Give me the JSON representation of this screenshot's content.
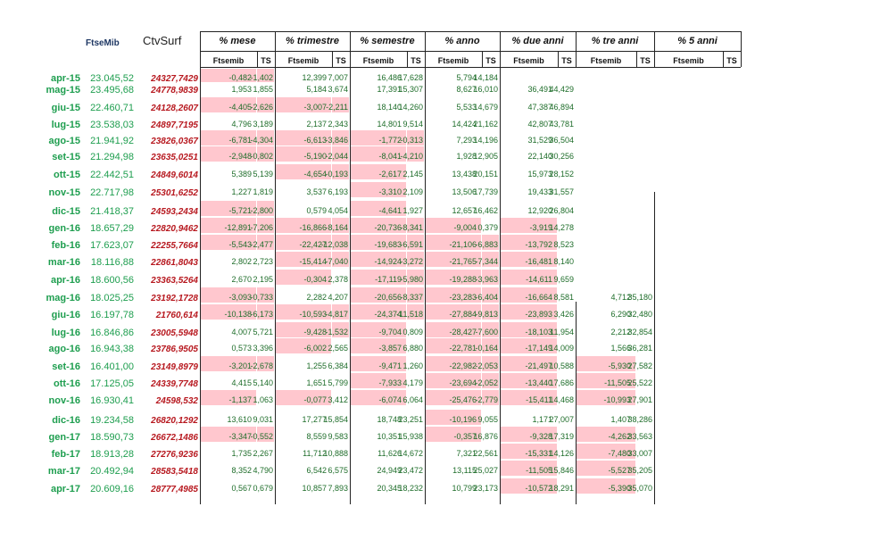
{
  "headers": {
    "ftsemib": "FtseMib",
    "ctvsurf": "CtvSurf",
    "groups": [
      "% mese",
      "% trimestre",
      "% semestre",
      "% anno",
      "% due anni",
      "% tre anni",
      "% 5 anni"
    ],
    "sub_ftse": "Ftsemib",
    "sub_ts": "TS"
  },
  "rows": [
    {
      "month": "apr-15",
      "ftse": "23.045,52",
      "ctv": "24327,7429",
      "v": [
        "-0,482",
        "-1,402",
        "12,399",
        "7,007",
        "16,486",
        "17,628",
        "5,794",
        "14,184",
        "",
        "",
        "",
        "",
        "",
        ""
      ]
    },
    {
      "month": "mag-15",
      "ftse": "23.495,68",
      "ctv": "24778,9839",
      "v": [
        "1,953",
        "1,855",
        "5,184",
        "3,674",
        "17,391",
        "15,307",
        "8,627",
        "16,010",
        "36,491",
        "44,429",
        "",
        "",
        "",
        ""
      ]
    },
    {
      "month": "giu-15",
      "ftse": "22.460,71",
      "ctv": "24128,2607",
      "v": [
        "-4,405",
        "-2,626",
        "-3,007",
        "-2,211",
        "18,140",
        "14,260",
        "5,533",
        "14,679",
        "47,387",
        "46,894",
        "",
        "",
        "",
        ""
      ]
    },
    {
      "month": "lug-15",
      "ftse": "23.538,03",
      "ctv": "24897,7195",
      "v": [
        "4,796",
        "3,189",
        "2,137",
        "2,343",
        "14,801",
        "9,514",
        "14,424",
        "21,162",
        "42,807",
        "43,781",
        "",
        "",
        "",
        ""
      ]
    },
    {
      "month": "ago-15",
      "ftse": "21.941,92",
      "ctv": "23826,0367",
      "v": [
        "-6,781",
        "-4,304",
        "-6,613",
        "-3,846",
        "-1,772",
        "-0,313",
        "7,293",
        "14,196",
        "31,529",
        "36,504",
        "",
        "",
        "",
        ""
      ]
    },
    {
      "month": "set-15",
      "ftse": "21.294,98",
      "ctv": "23635,0251",
      "v": [
        "-2,948",
        "-0,802",
        "-5,190",
        "-2,044",
        "-8,041",
        "-4,210",
        "1,928",
        "12,905",
        "22,140",
        "30,256",
        "",
        "",
        "",
        ""
      ]
    },
    {
      "month": "ott-15",
      "ftse": "22.442,51",
      "ctv": "24849,6014",
      "v": [
        "5,389",
        "5,139",
        "-4,654",
        "-0,193",
        "-2,617",
        "2,145",
        "13,438",
        "20,151",
        "15,973",
        "28,152",
        "",
        "",
        "",
        ""
      ]
    },
    {
      "month": "nov-15",
      "ftse": "22.717,98",
      "ctv": "25301,6252",
      "v": [
        "1,227",
        "1,819",
        "3,537",
        "6,193",
        "-3,310",
        "2,109",
        "13,506",
        "17,739",
        "19,433",
        "31,557",
        "",
        "",
        "",
        ""
      ]
    },
    {
      "month": "dic-15",
      "ftse": "21.418,37",
      "ctv": "24593,2434",
      "v": [
        "-5,721",
        "-2,800",
        "0,579",
        "4,054",
        "-4,641",
        "1,927",
        "12,657",
        "16,462",
        "12,920",
        "26,804",
        "",
        "",
        "",
        ""
      ]
    },
    {
      "month": "gen-16",
      "ftse": "18.657,29",
      "ctv": "22820,9462",
      "v": [
        "-12,891",
        "-7,206",
        "-16,866",
        "-8,164",
        "-20,736",
        "-8,341",
        "-9,004",
        "0,379",
        "-3,919",
        "14,278",
        "",
        "",
        "",
        ""
      ]
    },
    {
      "month": "feb-16",
      "ftse": "17.623,07",
      "ctv": "22255,7664",
      "v": [
        "-5,543",
        "-2,477",
        "-22,427",
        "-12,038",
        "-19,683",
        "-6,591",
        "-21,106",
        "-6,883",
        "-13,792",
        "8,523",
        "",
        "",
        "",
        ""
      ]
    },
    {
      "month": "mar-16",
      "ftse": "18.116,88",
      "ctv": "22861,8043",
      "v": [
        "2,802",
        "2,723",
        "-15,414",
        "-7,040",
        "-14,924",
        "-3,272",
        "-21,765",
        "-7,344",
        "-16,481",
        "8,140",
        "",
        "",
        "",
        ""
      ]
    },
    {
      "month": "apr-16",
      "ftse": "18.600,56",
      "ctv": "23363,5264",
      "v": [
        "2,670",
        "2,195",
        "-0,304",
        "2,378",
        "-17,119",
        "-5,980",
        "-19,288",
        "-3,963",
        "-14,611",
        "9,659",
        "",
        "",
        "",
        ""
      ]
    },
    {
      "month": "mag-16",
      "ftse": "18.025,25",
      "ctv": "23192,1728",
      "v": [
        "-3,093",
        "-0,733",
        "2,282",
        "4,207",
        "-20,656",
        "-8,337",
        "-23,283",
        "-6,404",
        "-16,664",
        "8,581",
        "4,712",
        "35,180",
        "",
        ""
      ]
    },
    {
      "month": "giu-16",
      "ftse": "16.197,78",
      "ctv": "21760,614",
      "v": [
        "-10,138",
        "-6,173",
        "-10,593",
        "-4,817",
        "-24,374",
        "-11,518",
        "-27,884",
        "-9,813",
        "-23,893",
        "3,426",
        "6,290",
        "32,480",
        "",
        ""
      ]
    },
    {
      "month": "lug-16",
      "ftse": "16.846,86",
      "ctv": "23005,5948",
      "v": [
        "4,007",
        "5,721",
        "-9,428",
        "-1,532",
        "-9,704",
        "0,809",
        "-28,427",
        "-7,600",
        "-18,103",
        "11,954",
        "2,212",
        "32,854",
        "",
        ""
      ]
    },
    {
      "month": "ago-16",
      "ftse": "16.943,38",
      "ctv": "23786,9505",
      "v": [
        "0,573",
        "3,396",
        "-6,002",
        "2,565",
        "-3,857",
        "6,880",
        "-22,781",
        "-0,164",
        "-17,149",
        "14,009",
        "1,566",
        "36,281",
        "",
        ""
      ]
    },
    {
      "month": "set-16",
      "ftse": "16.401,00",
      "ctv": "23149,8979",
      "v": [
        "-3,201",
        "-2,678",
        "1,255",
        "6,384",
        "-9,471",
        "1,260",
        "-22,982",
        "-2,053",
        "-21,497",
        "10,588",
        "-5,930",
        "27,582",
        "",
        ""
      ]
    },
    {
      "month": "ott-16",
      "ftse": "17.125,05",
      "ctv": "24339,7748",
      "v": [
        "4,415",
        "5,140",
        "1,651",
        "5,799",
        "-7,933",
        "4,179",
        "-23,694",
        "-2,052",
        "-13,440",
        "17,686",
        "-11,505",
        "25,522",
        "",
        ""
      ]
    },
    {
      "month": "nov-16",
      "ftse": "16.930,41",
      "ctv": "24598,532",
      "v": [
        "-1,137",
        "1,063",
        "-0,077",
        "3,412",
        "-6,074",
        "6,064",
        "-25,476",
        "-2,779",
        "-15,411",
        "14,468",
        "-10,993",
        "27,901",
        "",
        ""
      ]
    },
    {
      "month": "dic-16",
      "ftse": "19.234,58",
      "ctv": "26820,1292",
      "v": [
        "13,610",
        "9,031",
        "17,277",
        "15,854",
        "18,748",
        "23,251",
        "-10,196",
        "9,055",
        "1,171",
        "27,007",
        "1,407",
        "38,286",
        "",
        ""
      ]
    },
    {
      "month": "gen-17",
      "ftse": "18.590,73",
      "ctv": "26672,1486",
      "v": [
        "-3,347",
        "-0,552",
        "8,559",
        "9,583",
        "10,351",
        "15,938",
        "-0,357",
        "16,876",
        "-9,328",
        "17,319",
        "-4,262",
        "33,563",
        "",
        ""
      ]
    },
    {
      "month": "feb-17",
      "ftse": "18.913,28",
      "ctv": "27276,9236",
      "v": [
        "1,735",
        "2,267",
        "11,712",
        "10,888",
        "11,626",
        "14,672",
        "7,321",
        "22,561",
        "-15,331",
        "14,126",
        "-7,480",
        "33,007",
        "",
        ""
      ]
    },
    {
      "month": "mar-17",
      "ftse": "20.492,94",
      "ctv": "28583,5418",
      "v": [
        "8,352",
        "4,790",
        "6,542",
        "6,575",
        "24,949",
        "23,472",
        "13,115",
        "25,027",
        "-11,505",
        "15,846",
        "-5,527",
        "35,205",
        "",
        ""
      ]
    },
    {
      "month": "apr-17",
      "ftse": "20.609,16",
      "ctv": "28777,4985",
      "v": [
        "0,567",
        "0,679",
        "10,857",
        "7,893",
        "20,345",
        "18,232",
        "10,799",
        "23,173",
        "-10,572",
        "18,291",
        "-5,390",
        "35,070",
        "",
        ""
      ]
    }
  ],
  "colors": {
    "negative_fill": "#ffc7ce",
    "positive_text": "#1e6d2a",
    "ctv_text": "#b7181f",
    "month_text": "#1e9e4f"
  }
}
